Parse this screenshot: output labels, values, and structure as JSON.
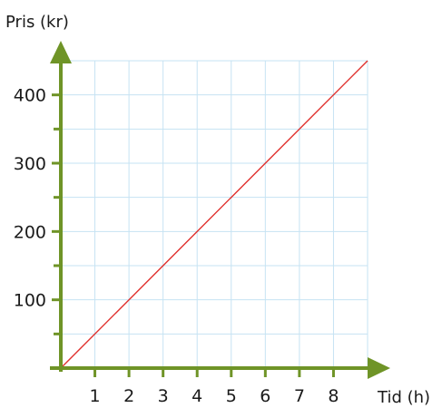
{
  "chart_data": {
    "type": "line",
    "ylabel": "Pris (kr)",
    "xlabel": "Tid (h)",
    "xlim": [
      0,
      9
    ],
    "ylim": [
      0,
      450
    ],
    "x_ticks": [
      "1",
      "2",
      "3",
      "4",
      "5",
      "6",
      "7",
      "8"
    ],
    "y_ticks": [
      "100",
      "200",
      "300",
      "400"
    ],
    "grid": true,
    "series": [
      {
        "x": [
          0,
          9
        ],
        "y": [
          0,
          450
        ]
      }
    ],
    "colors": {
      "axis": "#6f9427",
      "grid": "#c6e3f3",
      "line": "#e0302d"
    }
  }
}
